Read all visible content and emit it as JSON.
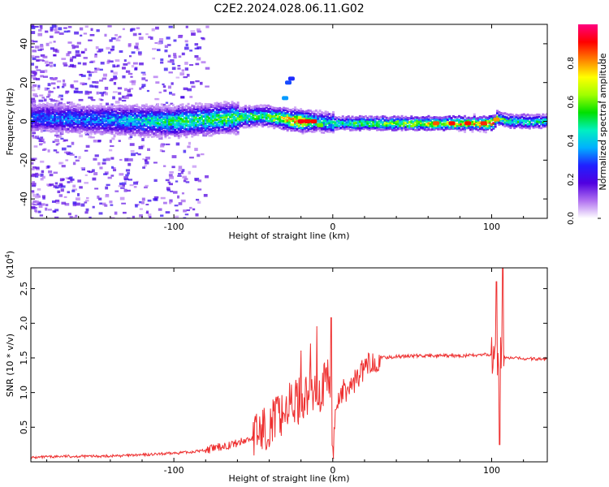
{
  "title": "C2E2.2024.028.06.11.G02",
  "colorbar": {
    "label": "Normalized spectral amplitude",
    "ticks": [
      "0.0",
      "0.2",
      "0.4",
      "0.6",
      "0.8"
    ],
    "tick_values": [
      0.0,
      0.2,
      0.4,
      0.6,
      0.8
    ],
    "range": [
      0,
      1
    ],
    "colormap": [
      "#ffffff",
      "#b070f0",
      "#5000e0",
      "#2020ff",
      "#00b0ff",
      "#00f0c0",
      "#00e000",
      "#a0ff00",
      "#ffff00",
      "#ff8000",
      "#ff0000",
      "#ff0080"
    ]
  },
  "chart_data": [
    {
      "type": "heatmap",
      "xlabel": "Height of straight line (km)",
      "ylabel": "Frequency (Hz)",
      "xlim": [
        -190,
        135
      ],
      "ylim": [
        -50,
        50
      ],
      "xticks": [
        -100,
        0,
        100
      ],
      "xtick_labels": [
        "-100",
        "0",
        "100"
      ],
      "yticks": [
        -40,
        -20,
        0,
        20,
        40
      ],
      "ytick_labels": [
        "-40",
        "-20",
        "0",
        "20",
        "40"
      ],
      "ridge": {
        "description_points_x": [
          -190,
          -150,
          -100,
          -60,
          -45,
          -20,
          -10,
          0,
          20,
          60,
          100,
          103,
          110,
          135
        ],
        "center_freq_hz": [
          2,
          1,
          0,
          2,
          3,
          0,
          0,
          -1,
          -1,
          -1,
          -1,
          2,
          0,
          0
        ],
        "peak_amplitude": [
          0.3,
          0.35,
          0.5,
          0.55,
          0.5,
          0.9,
          0.4,
          0.5,
          0.55,
          0.7,
          0.85,
          0.6,
          0.5,
          0.45
        ]
      }
    },
    {
      "type": "line",
      "xlabel": "Height of straight line (km)",
      "ylabel": "SNR (10 * v/v)",
      "yscale_label": "(x10",
      "yscale_exp": "4",
      "yscale_close": ")",
      "xlim": [
        -190,
        135
      ],
      "ylim": [
        0,
        2.8
      ],
      "xticks": [
        -100,
        0,
        100
      ],
      "xtick_labels": [
        "-100",
        "0",
        "100"
      ],
      "yticks": [
        0.5,
        1.0,
        1.5,
        2.0,
        2.5
      ],
      "ytick_labels": [
        "0.5",
        "1.0",
        "1.5",
        "2.0",
        "2.5"
      ],
      "series": [
        {
          "color": "#ee3030",
          "x": [
            -190,
            -170,
            -150,
            -130,
            -110,
            -90,
            -80,
            -70,
            -60,
            -50,
            -45,
            -40,
            -35,
            -30,
            -25,
            -20,
            -15,
            -10,
            -5,
            -2,
            0,
            2,
            5,
            10,
            15,
            20,
            25,
            30,
            40,
            50,
            60,
            70,
            80,
            90,
            98,
            100,
            102,
            104,
            106,
            108,
            110,
            120,
            135
          ],
          "y": [
            0.06,
            0.08,
            0.08,
            0.09,
            0.11,
            0.14,
            0.17,
            0.22,
            0.27,
            0.35,
            0.45,
            0.55,
            0.65,
            0.75,
            0.85,
            0.9,
            1.0,
            0.95,
            1.1,
            1.2,
            0.1,
            0.8,
            1.0,
            1.05,
            1.2,
            1.35,
            1.45,
            1.5,
            1.52,
            1.53,
            1.53,
            1.53,
            1.53,
            1.54,
            1.55,
            1.52,
            1.5,
            1.45,
            1.6,
            1.52,
            1.5,
            1.49,
            1.48
          ]
        }
      ],
      "spikes": [
        {
          "x": -20,
          "y": 1.6
        },
        {
          "x": -14,
          "y": 1.7
        },
        {
          "x": -10,
          "y": 1.95
        },
        {
          "x": -1,
          "y": 2.08
        },
        {
          "x": 0.5,
          "y": 0.05
        },
        {
          "x": 103,
          "y": 2.6
        },
        {
          "x": 105,
          "y": 0.25
        },
        {
          "x": 107,
          "y": 2.8
        }
      ]
    }
  ]
}
